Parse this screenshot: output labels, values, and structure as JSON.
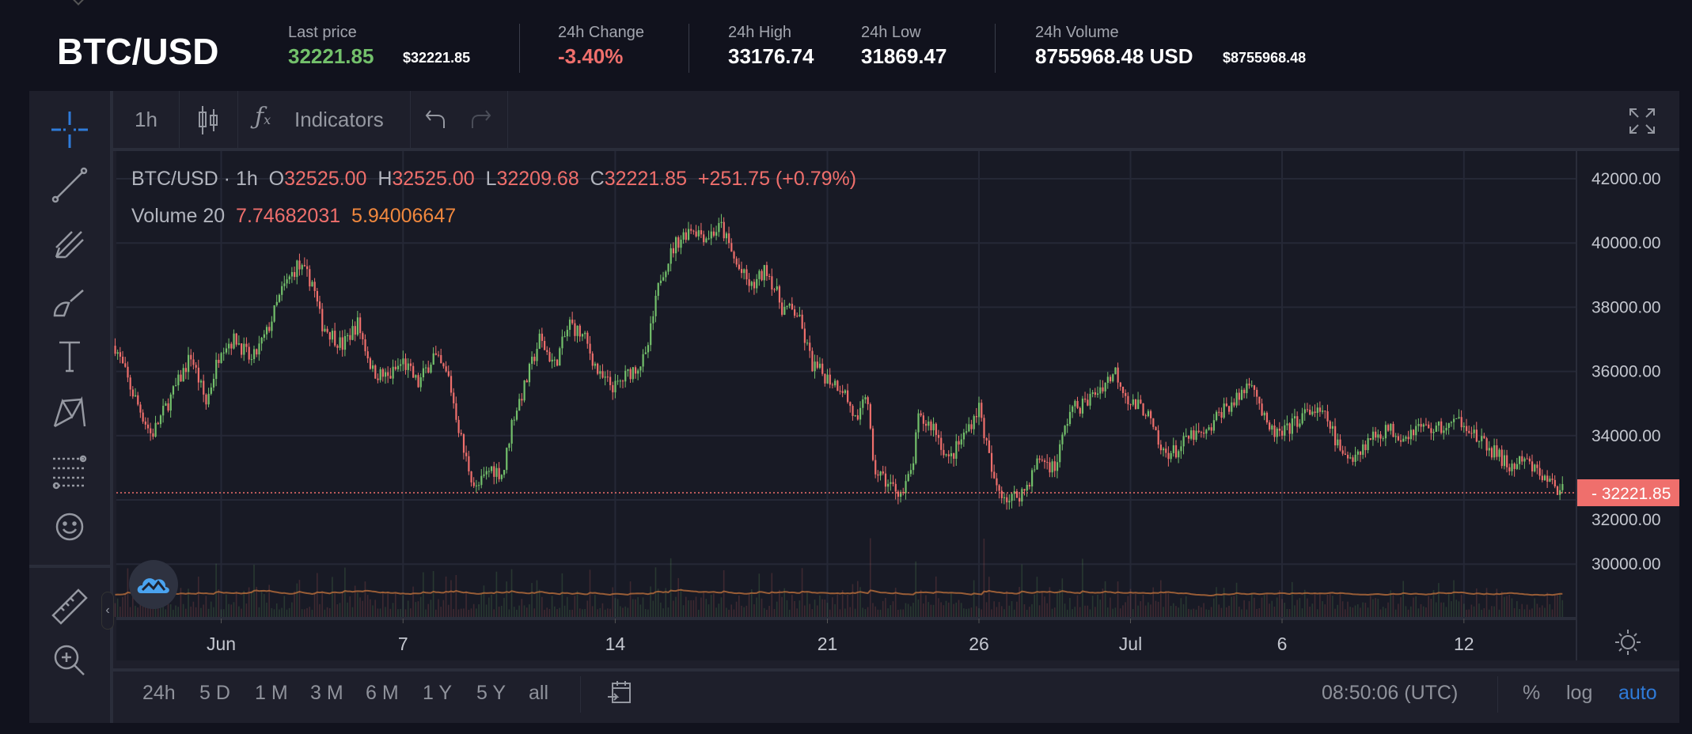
{
  "header": {
    "symbol": "BTC/USD",
    "last_price": {
      "label": "Last price",
      "value": "32221.85",
      "usd": "$32221.85"
    },
    "change": {
      "label": "24h Change",
      "value": "-3.40%"
    },
    "high": {
      "label": "24h High",
      "value": "33176.74"
    },
    "low": {
      "label": "24h Low",
      "value": "31869.47"
    },
    "volume": {
      "label": "24h Volume",
      "value": "8755968.48 USD",
      "usd": "$8755968.48"
    }
  },
  "toolbar": {
    "interval": "1h",
    "indicators": "Indicators"
  },
  "legend": {
    "symbol": "BTC/USD",
    "interval": "1h",
    "o_label": "O",
    "o": "32525.00",
    "h_label": "H",
    "h": "32525.00",
    "l_label": "L",
    "l": "32209.68",
    "c_label": "C",
    "c": "32221.85",
    "change": "+251.75 (+0.79%)",
    "volume_label": "Volume 20",
    "volume": "7.74682031",
    "volume_ma": "5.94006647"
  },
  "bottom": {
    "ranges": [
      "24h",
      "5 D",
      "1 M",
      "3 M",
      "6 M",
      "1 Y",
      "5 Y",
      "all"
    ],
    "time": "08:50:06 (UTC)",
    "percent": "%",
    "log": "log",
    "auto": "auto"
  },
  "colors": {
    "up": "#73c06b",
    "down": "#ef6f6c",
    "accent": "#2f7bd9",
    "volume_ma": "#b06a3a"
  },
  "chart_data": {
    "type": "candlestick",
    "current_price": "32221.85",
    "y_ticks": [
      "30000.00",
      "32000.00",
      "34000.00",
      "36000.00",
      "38000.00",
      "40000.00",
      "42000.00"
    ],
    "ylim": [
      29000,
      42500
    ],
    "x_ticks": [
      {
        "label": "Jun",
        "day": 0
      },
      {
        "label": "7",
        "day": 6
      },
      {
        "label": "14",
        "day": 13
      },
      {
        "label": "21",
        "day": 20
      },
      {
        "label": "26",
        "day": 25
      },
      {
        "label": "Jul",
        "day": 30
      },
      {
        "label": "6",
        "day": 35
      },
      {
        "label": "12",
        "day": 41
      }
    ],
    "price_path_day_price": [
      [
        -3.5,
        36800
      ],
      [
        -3,
        35500
      ],
      [
        -2.3,
        34000
      ],
      [
        -1.5,
        35500
      ],
      [
        -1,
        36500
      ],
      [
        -0.5,
        35000
      ],
      [
        0,
        36800
      ],
      [
        0.5,
        37000
      ],
      [
        1,
        36300
      ],
      [
        1.5,
        37200
      ],
      [
        2,
        38500
      ],
      [
        2.5,
        39300
      ],
      [
        3,
        38800
      ],
      [
        3.3,
        37500
      ],
      [
        4,
        36800
      ],
      [
        4.5,
        37500
      ],
      [
        5,
        36000
      ],
      [
        5.5,
        35800
      ],
      [
        6,
        36300
      ],
      [
        6.5,
        35600
      ],
      [
        7,
        36500
      ],
      [
        7.5,
        35800
      ],
      [
        8,
        33500
      ],
      [
        8.4,
        32300
      ],
      [
        8.9,
        33000
      ],
      [
        9.3,
        32800
      ],
      [
        9.6,
        34500
      ],
      [
        10,
        35500
      ],
      [
        10.5,
        37000
      ],
      [
        11,
        36200
      ],
      [
        11.5,
        37500
      ],
      [
        12,
        37000
      ],
      [
        12.5,
        35800
      ],
      [
        13,
        35500
      ],
      [
        13.5,
        36000
      ],
      [
        14,
        36400
      ],
      [
        14.5,
        39000
      ],
      [
        15,
        40000
      ],
      [
        15.5,
        40500
      ],
      [
        16,
        40200
      ],
      [
        16.5,
        40500
      ],
      [
        17,
        39300
      ],
      [
        17.5,
        38600
      ],
      [
        18,
        39200
      ],
      [
        18.5,
        38000
      ],
      [
        19,
        37800
      ],
      [
        19.5,
        36200
      ],
      [
        20,
        35800
      ],
      [
        20.5,
        35500
      ],
      [
        21,
        34300
      ],
      [
        21.3,
        35500
      ],
      [
        21.5,
        33000
      ],
      [
        22,
        32500
      ],
      [
        22.5,
        32200
      ],
      [
        22.8,
        33000
      ],
      [
        23,
        34500
      ],
      [
        23.5,
        34300
      ],
      [
        24,
        33200
      ],
      [
        24.5,
        34000
      ],
      [
        25,
        34900
      ],
      [
        25.5,
        32500
      ],
      [
        26,
        32000
      ],
      [
        26.5,
        32300
      ],
      [
        27,
        33300
      ],
      [
        27.5,
        33000
      ],
      [
        28,
        34800
      ],
      [
        28.5,
        35000
      ],
      [
        29,
        35500
      ],
      [
        29.5,
        36000
      ],
      [
        30,
        35000
      ],
      [
        30.5,
        34800
      ],
      [
        31,
        33500
      ],
      [
        31.5,
        33500
      ],
      [
        32,
        34000
      ],
      [
        32.5,
        34000
      ],
      [
        33,
        34800
      ],
      [
        33.5,
        35100
      ],
      [
        34,
        35800
      ],
      [
        34.5,
        34200
      ],
      [
        35,
        34000
      ],
      [
        35.5,
        34500
      ],
      [
        36,
        34800
      ],
      [
        36.5,
        34500
      ],
      [
        37,
        33300
      ],
      [
        37.5,
        33500
      ],
      [
        38,
        34000
      ],
      [
        38.5,
        34200
      ],
      [
        39,
        34000
      ],
      [
        39.5,
        34300
      ],
      [
        40,
        34200
      ],
      [
        40.5,
        34300
      ],
      [
        41,
        34500
      ],
      [
        41.5,
        33800
      ],
      [
        42,
        33500
      ],
      [
        42.5,
        33000
      ],
      [
        43,
        33200
      ],
      [
        43.5,
        32800
      ],
      [
        44.3,
        32222
      ]
    ]
  }
}
